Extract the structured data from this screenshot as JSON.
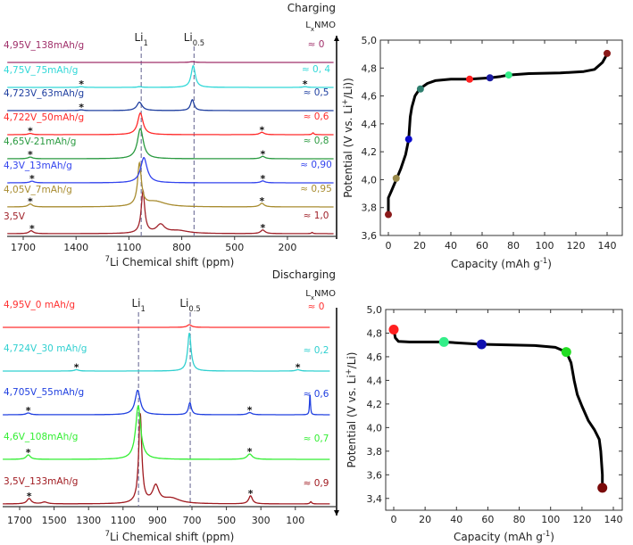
{
  "chart_data": [
    {
      "type": "line",
      "panel": "charging-nmr",
      "header": "Charging",
      "composition_label": {
        "base": "L",
        "sub": "x",
        "rest": "NMO"
      },
      "xlabel": {
        "sup": "7",
        "text": "Li Chemical shift (ppm)"
      },
      "xticks": [
        1700,
        1400,
        1100,
        800,
        500,
        200
      ],
      "xlim": [
        1830,
        -80
      ],
      "reference_lines": [
        {
          "base": "Li",
          "sub": "1",
          "ppm": 1030
        },
        {
          "base": "Li",
          "sub": "0.5",
          "ppm": 730
        }
      ],
      "arrow_direction": "up",
      "series": [
        {
          "name": "3,5V",
          "x_label": "≈ 1,0",
          "color": "#a0222a",
          "peaks": [
            [
              1020,
              1.75,
              12
            ],
            [
              920,
              0.35,
              28
            ],
            [
              820,
              0.12,
              70
            ],
            [
              1655,
              0.12,
              15
            ],
            [
              340,
              0.15,
              15
            ],
            [
              60,
              0.05,
              6
            ]
          ],
          "asterisks": [
            1650,
            340
          ]
        },
        {
          "name": "4,05V_7mAh/g",
          "x_label": "≈ 0,95",
          "color": "#a88c30",
          "peaks": [
            [
              1040,
              1.75,
              13
            ],
            [
              950,
              0.22,
              70
            ],
            [
              1660,
              0.12,
              15
            ],
            [
              345,
              0.15,
              15
            ]
          ],
          "asterisks": [
            1660,
            345
          ]
        },
        {
          "name": "4,3V_13mAh/g",
          "x_label": "≈ 0,90",
          "color": "#3344ee",
          "peaks": [
            [
              1015,
              1.05,
              22
            ],
            [
              1650,
              0.07,
              15
            ],
            [
              340,
              0.08,
              15
            ]
          ],
          "asterisks": [
            1650,
            340
          ]
        },
        {
          "name": "4,65V-21mAh/g",
          "x_label": "≈ 0,8",
          "color": "#2a9a40",
          "peaks": [
            [
              1035,
              1.25,
              20
            ],
            [
              1660,
              0.07,
              15
            ],
            [
              340,
              0.1,
              15
            ]
          ],
          "asterisks": [
            1660,
            340
          ]
        },
        {
          "name": "4,722V_50mAh/g",
          "x_label": "≈ 0,6",
          "color": "#ff2a2a",
          "peaks": [
            [
              1035,
              0.9,
              18
            ],
            [
              1660,
              0.05,
              15
            ],
            [
              345,
              0.1,
              15
            ],
            [
              55,
              0.08,
              6
            ]
          ],
          "asterisks": [
            1660,
            345
          ]
        },
        {
          "name": "4,723V_63mAh/g",
          "x_label": "≈ 0,5",
          "color": "#2040a0",
          "peaks": [
            [
              1040,
              0.35,
              18
            ],
            [
              740,
              0.45,
              12
            ],
            [
              1370,
              0.03,
              15
            ]
          ],
          "asterisks": [
            1370
          ]
        },
        {
          "name": "4,75V_75mAh/g",
          "x_label": "≈ 0, 4",
          "color": "#30d8d8",
          "peaks": [
            [
              735,
              0.9,
              14
            ],
            [
              1040,
              0.03,
              15
            ],
            [
              1370,
              0.03,
              15
            ],
            [
              100,
              0.03,
              15
            ]
          ],
          "asterisks": [
            1370,
            100
          ]
        },
        {
          "name": "4,95V_138mAh/g",
          "x_label": "≈ 0",
          "color": "#a0306a",
          "peaks": [
            [
              740,
              0.03,
              20
            ]
          ],
          "asterisks": []
        }
      ]
    },
    {
      "type": "line",
      "panel": "discharging-nmr",
      "header": "Discharging",
      "composition_label": {
        "base": "L",
        "sub": "x",
        "rest": "NMO"
      },
      "xlabel": {
        "sup": "7",
        "text": "Li Chemical shift (ppm)"
      },
      "xticks": [
        1700,
        1500,
        1300,
        1100,
        900,
        700,
        500,
        300,
        100
      ],
      "xlim": [
        1810,
        -100
      ],
      "reference_lines": [
        {
          "base": "Li",
          "sub": "1",
          "ppm": 1010
        },
        {
          "base": "Li",
          "sub": "0.5",
          "ppm": 710
        }
      ],
      "arrow_direction": "down",
      "series": [
        {
          "name": "3,5V_133mAh/g",
          "x_label": "≈ 0,9",
          "color": "#a01a20",
          "peaks": [
            [
              1000,
              2.0,
              11
            ],
            [
              910,
              0.38,
              22
            ],
            [
              820,
              0.12,
              60
            ],
            [
              1645,
              0.12,
              15
            ],
            [
              1555,
              0.04,
              20
            ],
            [
              360,
              0.18,
              13
            ],
            [
              10,
              0.05,
              6
            ]
          ],
          "asterisks": [
            1645,
            360
          ]
        },
        {
          "name": "4,6V_108mAh/g",
          "x_label": "≈ 0,7",
          "color": "#33ee33",
          "peaks": [
            [
              1012,
              1.2,
              18
            ],
            [
              1650,
              0.1,
              15
            ],
            [
              365,
              0.12,
              18
            ]
          ],
          "asterisks": [
            1650,
            365
          ]
        },
        {
          "name": "4,705V_55mAh/g",
          "x_label": "≈ 0,6",
          "color": "#2040e0",
          "peaks": [
            [
              1015,
              0.55,
              18
            ],
            [
              712,
              0.27,
              10
            ],
            [
              1650,
              0.04,
              15
            ],
            [
              365,
              0.05,
              15
            ],
            [
              15,
              0.48,
              3
            ]
          ],
          "asterisks": [
            1650,
            365
          ]
        },
        {
          "name": "4,724V_30 mAh/g",
          "x_label": "≈ 0,2",
          "color": "#30d0d0",
          "peaks": [
            [
              715,
              0.85,
              12
            ],
            [
              1370,
              0.03,
              15
            ],
            [
              85,
              0.03,
              15
            ]
          ],
          "asterisks": [
            1370,
            85
          ]
        },
        {
          "name": "4,95V_0 mAh/g",
          "x_label": "≈ 0",
          "color": "#ff3030",
          "peaks": [
            [
              715,
              0.06,
              15
            ]
          ],
          "asterisks": []
        }
      ]
    },
    {
      "type": "scatter",
      "panel": "charge-curve",
      "xlabel": "Capacity (mAh g-1)",
      "ylabel": "Potential (V vs. Li+/Li))",
      "xlim": [
        -5,
        147
      ],
      "ylim": [
        3.6,
        5.0
      ],
      "xticks": [
        0,
        20,
        40,
        60,
        80,
        100,
        120,
        140
      ],
      "yticks": [
        "3,6",
        "3,8",
        "4,0",
        "4,2",
        "4,4",
        "4,6",
        "4,8",
        "5,0"
      ],
      "curve": [
        [
          0,
          3.75
        ],
        [
          0,
          3.87
        ],
        [
          2,
          3.92
        ],
        [
          5,
          4.0
        ],
        [
          8,
          4.08
        ],
        [
          11,
          4.18
        ],
        [
          13,
          4.29
        ],
        [
          14,
          4.45
        ],
        [
          15,
          4.52
        ],
        [
          17,
          4.6
        ],
        [
          20,
          4.65
        ],
        [
          25,
          4.69
        ],
        [
          30,
          4.71
        ],
        [
          40,
          4.72
        ],
        [
          52,
          4.72
        ],
        [
          65,
          4.73
        ],
        [
          72,
          4.74
        ],
        [
          77,
          4.75
        ],
        [
          90,
          4.76
        ],
        [
          110,
          4.765
        ],
        [
          125,
          4.775
        ],
        [
          132,
          4.79
        ],
        [
          137,
          4.84
        ],
        [
          140,
          4.9
        ]
      ],
      "markers": [
        {
          "x": 0,
          "y": 3.75,
          "color": "#8b1a1a"
        },
        {
          "x": 5,
          "y": 4.01,
          "color": "#9a8a4a"
        },
        {
          "x": 13,
          "y": 4.29,
          "color": "#0a0acc"
        },
        {
          "x": 20.5,
          "y": 4.65,
          "color": "#2f7f6f"
        },
        {
          "x": 52,
          "y": 4.72,
          "color": "#ff2020"
        },
        {
          "x": 65,
          "y": 4.73,
          "color": "#1a1aa0"
        },
        {
          "x": 77,
          "y": 4.75,
          "color": "#33ee88"
        },
        {
          "x": 140,
          "y": 4.905,
          "color": "#8b1a1a"
        }
      ]
    },
    {
      "type": "scatter",
      "panel": "discharge-curve",
      "xlabel": "Capacity (mAh g-1)",
      "ylabel": "Potential (V vs. Li+/Li)",
      "xlim": [
        -5,
        150
      ],
      "ylim": [
        3.3,
        5.0
      ],
      "xticks": [
        0,
        20,
        40,
        60,
        80,
        100,
        120,
        140
      ],
      "yticks": [
        "3,4",
        "3,6",
        "3,8",
        "4,0",
        "4,2",
        "4,4",
        "4,6",
        "4,8",
        "5,0"
      ],
      "curve": [
        [
          0,
          4.83
        ],
        [
          1,
          4.76
        ],
        [
          3,
          4.73
        ],
        [
          10,
          4.725
        ],
        [
          32,
          4.725
        ],
        [
          56,
          4.705
        ],
        [
          90,
          4.695
        ],
        [
          103,
          4.68
        ],
        [
          110,
          4.64
        ],
        [
          113,
          4.55
        ],
        [
          115,
          4.4
        ],
        [
          117,
          4.28
        ],
        [
          120,
          4.18
        ],
        [
          124,
          4.06
        ],
        [
          128,
          3.98
        ],
        [
          131,
          3.9
        ],
        [
          132,
          3.8
        ],
        [
          133,
          3.6
        ],
        [
          133,
          3.49
        ]
      ],
      "markers": [
        {
          "x": 0,
          "y": 4.83,
          "color": "#ff2020"
        },
        {
          "x": 32,
          "y": 4.725,
          "color": "#33ee88"
        },
        {
          "x": 56,
          "y": 4.705,
          "color": "#1010b0"
        },
        {
          "x": 110,
          "y": 4.64,
          "color": "#22dd22"
        },
        {
          "x": 133,
          "y": 3.49,
          "color": "#7a0a0a"
        }
      ]
    }
  ]
}
